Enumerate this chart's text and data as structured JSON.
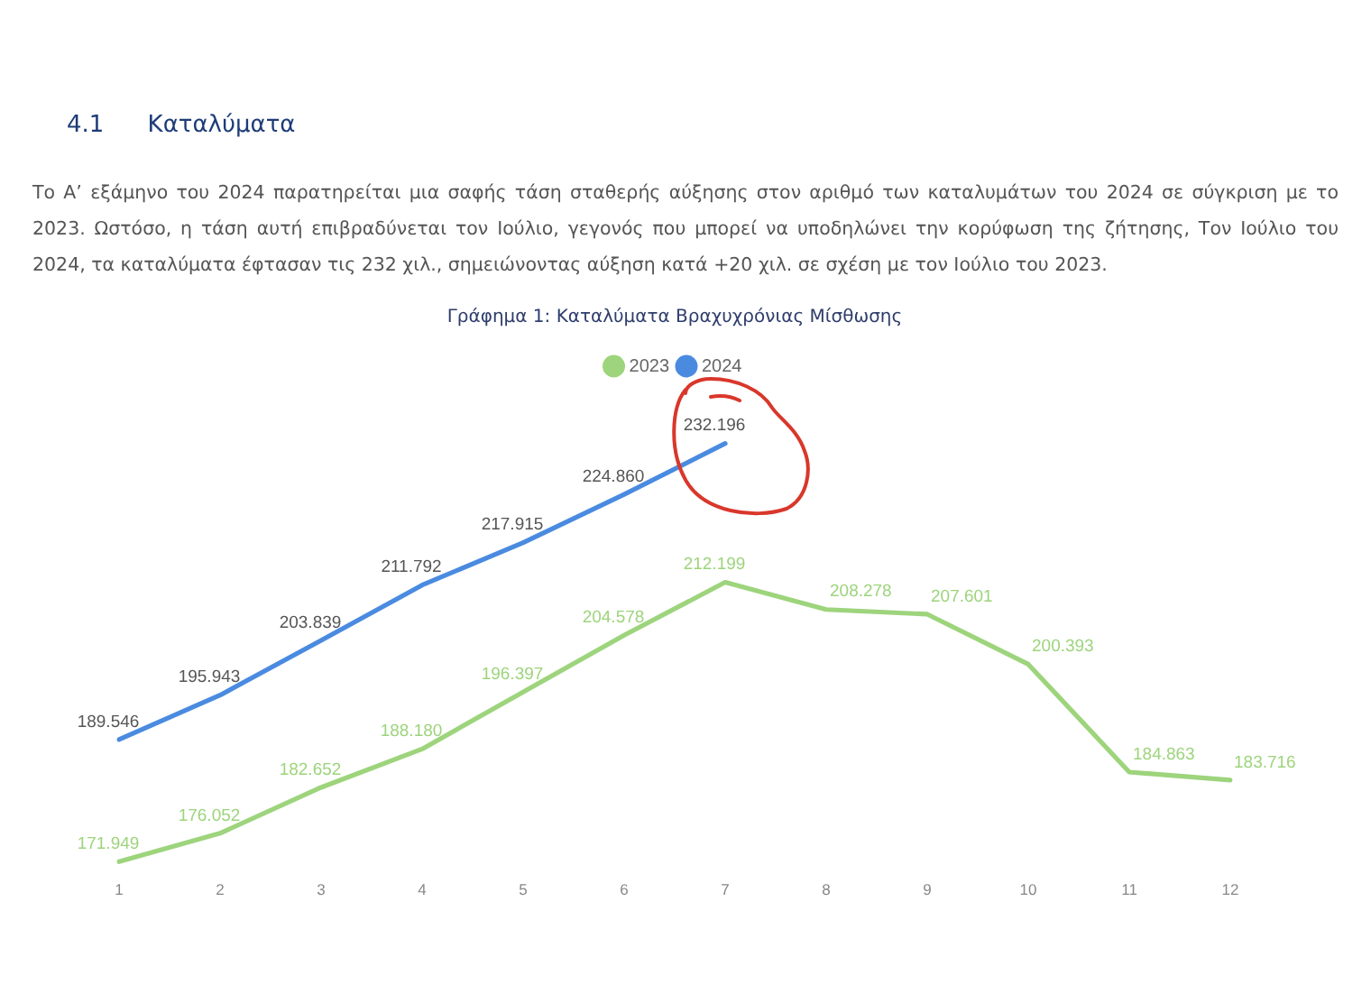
{
  "chart_data": {
    "type": "line",
    "title": "Γράφημα 1: Καταλύματα Βραχυχρόνιας Μίσθωσης",
    "annotations": [
      "4.1 Καταλύματα",
      "Το Α’ εξάμηνο του 2024 παρατηρείται μια σαφής τάση σταθερής αύξησης στον αριθμό των καταλυμάτων του 2024 σε σύγκριση με το 2023. Ωστόσο, η τάση αυτή επιβραδύνεται τον Ιούλιο, γεγονός που μπορεί να υποδηλώνει την κορύφωση της ζήτησης, Τον Ιούλιο του 2024, τα καταλύματα έφτασαν τις 232 χιλ., σημειώνοντας αύξηση κατά +20 χιλ. σε σχέση με τον Ιούλιο του 2023."
    ],
    "categories": [
      "1",
      "2",
      "3",
      "4",
      "5",
      "6",
      "7",
      "8",
      "9",
      "10",
      "11",
      "12"
    ],
    "series": [
      {
        "name": "2023",
        "color": "#9dd47c",
        "values": [
          171.949,
          176.052,
          182.652,
          188.18,
          196.397,
          204.578,
          212.199,
          208.278,
          207.601,
          200.393,
          184.863,
          183.716
        ],
        "value_labels": [
          "171.949",
          "176.052",
          "182.652",
          "188.180",
          "196.397",
          "204.578",
          "212.199",
          "208.278",
          "207.601",
          "200.393",
          "184.863",
          "183.716"
        ]
      },
      {
        "name": "2024",
        "color": "#4a8be0",
        "values": [
          189.546,
          195.943,
          203.839,
          211.792,
          217.915,
          224.86,
          232.196,
          null,
          null,
          null,
          null,
          null
        ],
        "value_labels": [
          "189.546",
          "195.943",
          "203.839",
          "211.792",
          "217.915",
          "224.860",
          "232.196",
          null,
          null,
          null,
          null,
          null
        ]
      }
    ],
    "legend": "top",
    "grid": false,
    "marker": "none",
    "tick_labels": "x"
  }
}
